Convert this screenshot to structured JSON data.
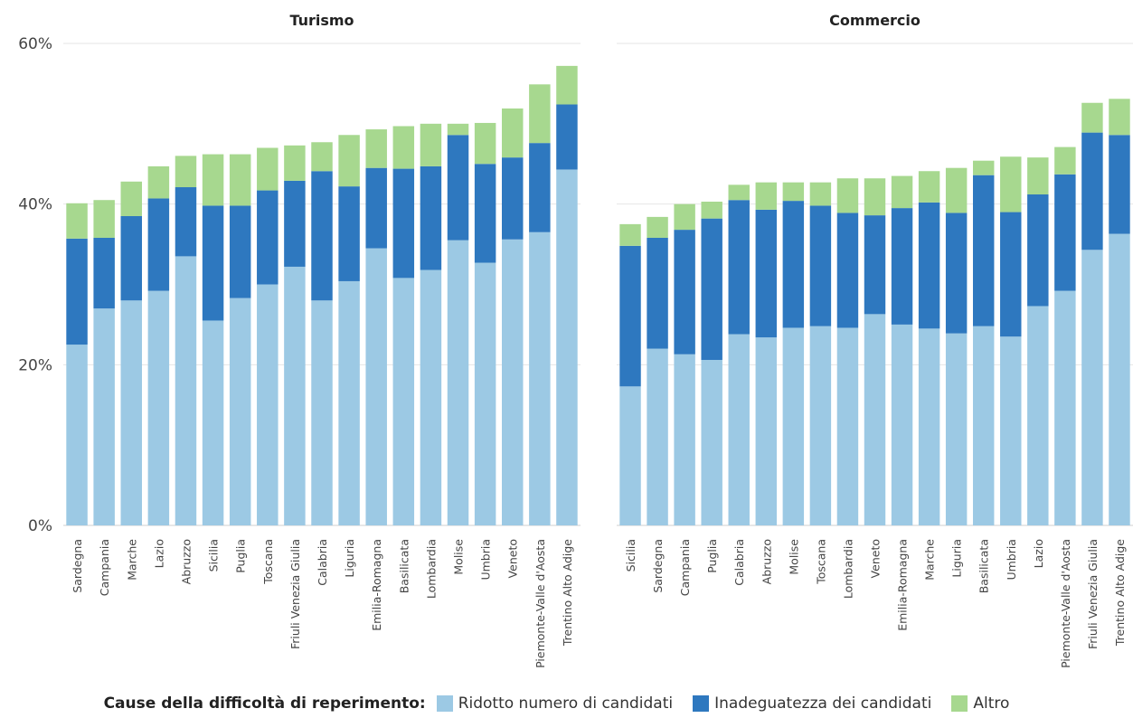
{
  "colors": {
    "ridotto": "#9cc9e4",
    "inadeguatezza": "#2e78bf",
    "altro": "#a7d88f",
    "grid": "#e6e6e6",
    "axis_text": "#444444"
  },
  "legend": {
    "title": "Cause della difficoltà di reperimento:",
    "items": [
      {
        "label": "Ridotto numero di candidati",
        "color_key": "ridotto"
      },
      {
        "label": "Inadeguatezza dei candidati",
        "color_key": "inadeguatezza"
      },
      {
        "label": "Altro",
        "color_key": "altro"
      }
    ]
  },
  "chart_data": [
    {
      "type": "bar",
      "stacked": true,
      "title": "Turismo",
      "ylim": [
        0,
        60
      ],
      "yticks": [
        "0%",
        "20%",
        "40%",
        "60%"
      ],
      "categories": [
        "Sardegna",
        "Campania",
        "Marche",
        "Lazio",
        "Abruzzo",
        "Sicilia",
        "Puglia",
        "Toscana",
        "Friuli Venezia Giulia",
        "Calabria",
        "Liguria",
        "Emilia-Romagna",
        "Basilicata",
        "Lombardia",
        "Molise",
        "Umbria",
        "Veneto",
        "Piemonte-Valle d'Aosta",
        "Trentino Alto Adige"
      ],
      "series": [
        {
          "name": "Ridotto numero di candidati",
          "values": [
            22.5,
            27.0,
            28.0,
            29.2,
            33.5,
            25.5,
            28.3,
            30.0,
            32.2,
            28.0,
            30.4,
            34.5,
            30.8,
            31.8,
            35.5,
            32.7,
            35.6,
            36.5,
            44.3
          ]
        },
        {
          "name": "Inadeguatezza dei candidati",
          "values": [
            13.2,
            8.8,
            10.5,
            11.5,
            8.6,
            14.3,
            11.5,
            11.7,
            10.7,
            16.1,
            11.8,
            10.0,
            13.6,
            12.9,
            13.1,
            12.3,
            10.2,
            11.1,
            8.1
          ]
        },
        {
          "name": "Altro",
          "values": [
            4.4,
            4.7,
            4.3,
            4.0,
            3.9,
            6.4,
            6.4,
            5.3,
            4.4,
            3.6,
            6.4,
            4.8,
            5.3,
            5.3,
            1.4,
            5.1,
            6.1,
            7.3,
            4.8
          ]
        }
      ]
    },
    {
      "type": "bar",
      "stacked": true,
      "title": "Commercio",
      "ylim": [
        0,
        60
      ],
      "yticks": [
        "0%",
        "20%",
        "40%",
        "60%"
      ],
      "categories": [
        "Sicilia",
        "Sardegna",
        "Campania",
        "Puglia",
        "Calabria",
        "Abruzzo",
        "Molise",
        "Toscana",
        "Lombardia",
        "Veneto",
        "Emilia-Romagna",
        "Marche",
        "Liguria",
        "Basilicata",
        "Umbria",
        "Lazio",
        "Piemonte-Valle d'Aosta",
        "Friuli Venezia Giulia",
        "Trentino Alto Adige"
      ],
      "series": [
        {
          "name": "Ridotto numero di candidati",
          "values": [
            17.3,
            22.0,
            21.3,
            20.6,
            23.8,
            23.4,
            24.6,
            24.8,
            24.6,
            26.3,
            25.0,
            24.5,
            23.9,
            24.8,
            23.5,
            27.3,
            29.2,
            34.3,
            36.3
          ]
        },
        {
          "name": "Inadeguatezza dei candidati",
          "values": [
            17.5,
            13.8,
            15.5,
            17.6,
            16.7,
            15.9,
            15.8,
            15.0,
            14.3,
            12.3,
            14.5,
            15.7,
            15.0,
            18.8,
            15.5,
            13.9,
            14.5,
            14.6,
            12.3
          ]
        },
        {
          "name": "Altro",
          "values": [
            2.7,
            2.6,
            3.2,
            2.1,
            1.9,
            3.4,
            2.3,
            2.9,
            4.3,
            4.6,
            4.0,
            3.9,
            5.6,
            1.8,
            6.9,
            4.6,
            3.4,
            3.7,
            4.5
          ]
        }
      ]
    }
  ]
}
